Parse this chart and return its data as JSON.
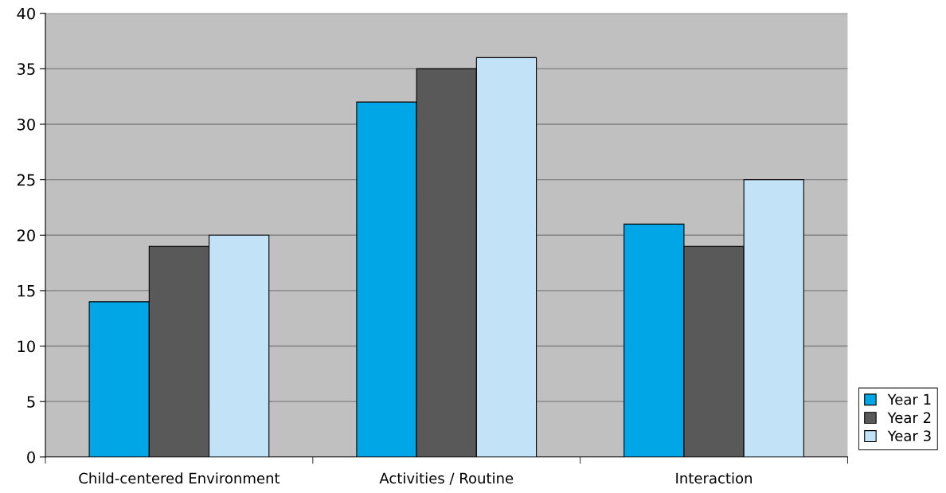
{
  "chart_data": {
    "type": "bar",
    "categories": [
      "Child-centered Environment",
      "Activities / Routine",
      "Interaction"
    ],
    "series": [
      {
        "name": "Year 1",
        "color": "#00a6e6",
        "values": [
          14,
          32,
          21
        ]
      },
      {
        "name": "Year 2",
        "color": "#595959",
        "values": [
          19,
          35,
          19
        ]
      },
      {
        "name": "Year 3",
        "color": "#c2e2f7",
        "values": [
          20,
          36,
          25
        ]
      }
    ],
    "ylim": [
      0,
      40
    ],
    "yticks": [
      0,
      5,
      10,
      15,
      20,
      25,
      30,
      35,
      40
    ],
    "grid": "y",
    "legend": "bottom right"
  }
}
